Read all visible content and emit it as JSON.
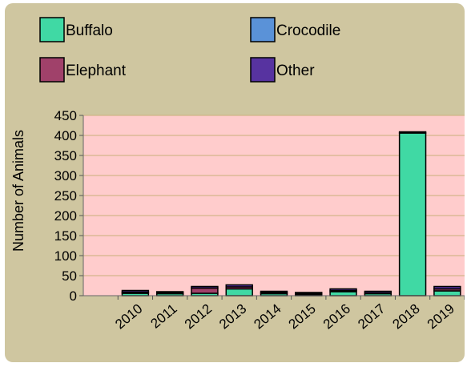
{
  "chart_data": {
    "type": "bar",
    "stacked": true,
    "title": "",
    "xlabel": "",
    "ylabel": "Number of Animals",
    "ylim": [
      0,
      450
    ],
    "yticks": [
      0,
      50,
      100,
      150,
      200,
      250,
      300,
      350,
      400,
      450
    ],
    "grid": true,
    "legend_position": "top",
    "plot_background": "#ffcccc",
    "panel_background": "#cfc6a0",
    "categories": [
      "2010",
      "2011",
      "2012",
      "2013",
      "2014",
      "2015",
      "2016",
      "2017",
      "2018",
      "2019"
    ],
    "series": [
      {
        "name": "Buffalo",
        "color": "#40d9a4",
        "values": [
          6,
          5,
          6,
          17,
          5,
          3,
          10,
          5,
          406,
          12
        ]
      },
      {
        "name": "Crocodile",
        "color": "#5a92d8",
        "values": [
          0,
          0,
          0,
          0,
          0,
          0,
          0,
          0,
          0,
          0
        ]
      },
      {
        "name": "Elephant",
        "color": "#a0416a",
        "values": [
          3,
          2,
          13,
          5,
          3,
          3,
          3,
          2,
          0,
          5
        ]
      },
      {
        "name": "Other",
        "color": "#5733a0",
        "values": [
          4,
          3,
          4,
          5,
          3,
          2,
          4,
          4,
          3,
          6
        ]
      }
    ]
  }
}
